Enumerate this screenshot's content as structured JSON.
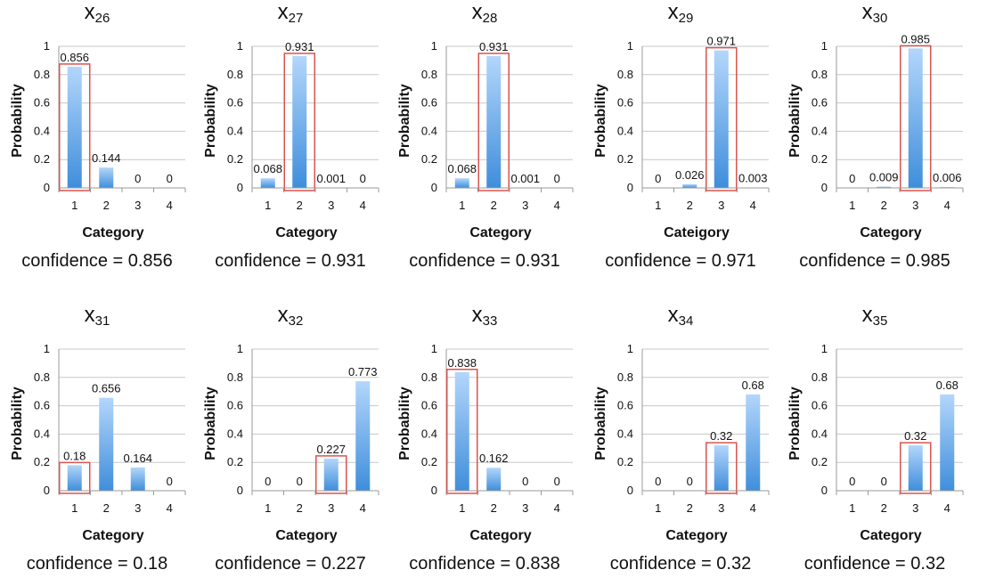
{
  "colors": {
    "bar_top": "#b3d6fb",
    "bar_bottom": "#3f8edb",
    "highlight": "#d9544f",
    "grid": "#c8c8c8"
  },
  "chart_data": [
    {
      "type": "bar",
      "title_base": "x",
      "title_sub": "26",
      "categories": [
        "1",
        "2",
        "3",
        "4"
      ],
      "values": [
        0.856,
        0.144,
        0,
        0
      ],
      "value_labels": [
        "0.856",
        "0.144",
        "0",
        "0"
      ],
      "highlight_index": 0,
      "xlabel": "Category",
      "ylabel": "Probability",
      "ylim": [
        0,
        1
      ],
      "yticks": [
        "0",
        "0.2",
        "0.4",
        "0.6",
        "0.8",
        "1"
      ],
      "confidence": "confidence = 0.856"
    },
    {
      "type": "bar",
      "title_base": "x",
      "title_sub": "27",
      "categories": [
        "1",
        "2",
        "3",
        "4"
      ],
      "values": [
        0.068,
        0.931,
        0.001,
        0
      ],
      "value_labels": [
        "0.068",
        "0.931",
        "0.001",
        "0"
      ],
      "highlight_index": 1,
      "xlabel": "Category",
      "ylabel": "Probability",
      "ylim": [
        0,
        1
      ],
      "yticks": [
        "0",
        "0.2",
        "0.4",
        "0.6",
        "0.8",
        "1"
      ],
      "confidence": "confidence = 0.931"
    },
    {
      "type": "bar",
      "title_base": "x",
      "title_sub": "28",
      "categories": [
        "1",
        "2",
        "3",
        "4"
      ],
      "values": [
        0.068,
        0.931,
        0.001,
        0
      ],
      "value_labels": [
        "0.068",
        "0.931",
        "0.001",
        "0"
      ],
      "highlight_index": 1,
      "xlabel": "Category",
      "ylabel": "Probability",
      "ylim": [
        0,
        1
      ],
      "yticks": [
        "0",
        "0.2",
        "0.4",
        "0.6",
        "0.8",
        "1"
      ],
      "confidence": "confidence = 0.931"
    },
    {
      "type": "bar",
      "title_base": "x",
      "title_sub": "29",
      "categories": [
        "1",
        "2",
        "3",
        "4"
      ],
      "values": [
        0,
        0.026,
        0.971,
        0.003
      ],
      "value_labels": [
        "0",
        "0.026",
        "0.971",
        "0.003"
      ],
      "highlight_index": 2,
      "xlabel": "Cateigory",
      "ylabel": "Probability",
      "ylim": [
        0,
        1
      ],
      "yticks": [
        "0",
        "0.2",
        "0.4",
        "0.6",
        "0.8",
        "1"
      ],
      "confidence": "confidence = 0.971"
    },
    {
      "type": "bar",
      "title_base": "x",
      "title_sub": "30",
      "categories": [
        "1",
        "2",
        "3",
        "4"
      ],
      "values": [
        0,
        0.009,
        0.985,
        0.006
      ],
      "value_labels": [
        "0",
        "0.009",
        "0.985",
        "0.006"
      ],
      "highlight_index": 2,
      "xlabel": "Category",
      "ylabel": "Probability",
      "ylim": [
        0,
        1
      ],
      "yticks": [
        "0",
        "0.2",
        "0.4",
        "0.6",
        "0.8",
        "1"
      ],
      "confidence": "confidence = 0.985"
    },
    {
      "type": "bar",
      "title_base": "x",
      "title_sub": "31",
      "categories": [
        "1",
        "2",
        "3",
        "4"
      ],
      "values": [
        0.18,
        0.656,
        0.164,
        0
      ],
      "value_labels": [
        "0.18",
        "0.656",
        "0.164",
        "0"
      ],
      "highlight_index": 0,
      "xlabel": "Category",
      "ylabel": "Probability",
      "ylim": [
        0,
        1
      ],
      "yticks": [
        "0",
        "0.2",
        "0.4",
        "0.6",
        "0.8",
        "1"
      ],
      "confidence": "confidence = 0.18"
    },
    {
      "type": "bar",
      "title_base": "x",
      "title_sub": "32",
      "categories": [
        "1",
        "2",
        "3",
        "4"
      ],
      "values": [
        0,
        0,
        0.227,
        0.773
      ],
      "value_labels": [
        "0",
        "0",
        "0.227",
        "0.773"
      ],
      "highlight_index": 2,
      "xlabel": "Category",
      "ylabel": "Probability",
      "ylim": [
        0,
        1
      ],
      "yticks": [
        "0",
        "0.2",
        "0.4",
        "0.6",
        "0.8",
        "1"
      ],
      "confidence": "confidence = 0.227"
    },
    {
      "type": "bar",
      "title_base": "x",
      "title_sub": "33",
      "categories": [
        "1",
        "2",
        "3",
        "4"
      ],
      "values": [
        0.838,
        0.162,
        0,
        0
      ],
      "value_labels": [
        "0.838",
        "0.162",
        "0",
        "0"
      ],
      "highlight_index": 0,
      "xlabel": "Category",
      "ylabel": "Probability",
      "ylim": [
        0,
        1
      ],
      "yticks": [
        "0",
        "0.2",
        "0.4",
        "0.6",
        "0.8",
        "1"
      ],
      "confidence": "confidence = 0.838"
    },
    {
      "type": "bar",
      "title_base": "x",
      "title_sub": "34",
      "categories": [
        "1",
        "2",
        "3",
        "4"
      ],
      "values": [
        0,
        0,
        0.32,
        0.68
      ],
      "value_labels": [
        "0",
        "0",
        "0.32",
        "0.68"
      ],
      "highlight_index": 2,
      "xlabel": "Category",
      "ylabel": "Probability",
      "ylim": [
        0,
        1
      ],
      "yticks": [
        "0",
        "0.2",
        "0.4",
        "0.6",
        "0.8",
        "1"
      ],
      "confidence": "confidence = 0.32"
    },
    {
      "type": "bar",
      "title_base": "x",
      "title_sub": "35",
      "categories": [
        "1",
        "2",
        "3",
        "4"
      ],
      "values": [
        0,
        0,
        0.32,
        0.68
      ],
      "value_labels": [
        "0",
        "0",
        "0.32",
        "0.68"
      ],
      "highlight_index": 2,
      "xlabel": "Category",
      "ylabel": "Probability",
      "ylim": [
        0,
        1
      ],
      "yticks": [
        "0",
        "0.2",
        "0.4",
        "0.6",
        "0.8",
        "1"
      ],
      "confidence": "confidence = 0.32"
    }
  ]
}
